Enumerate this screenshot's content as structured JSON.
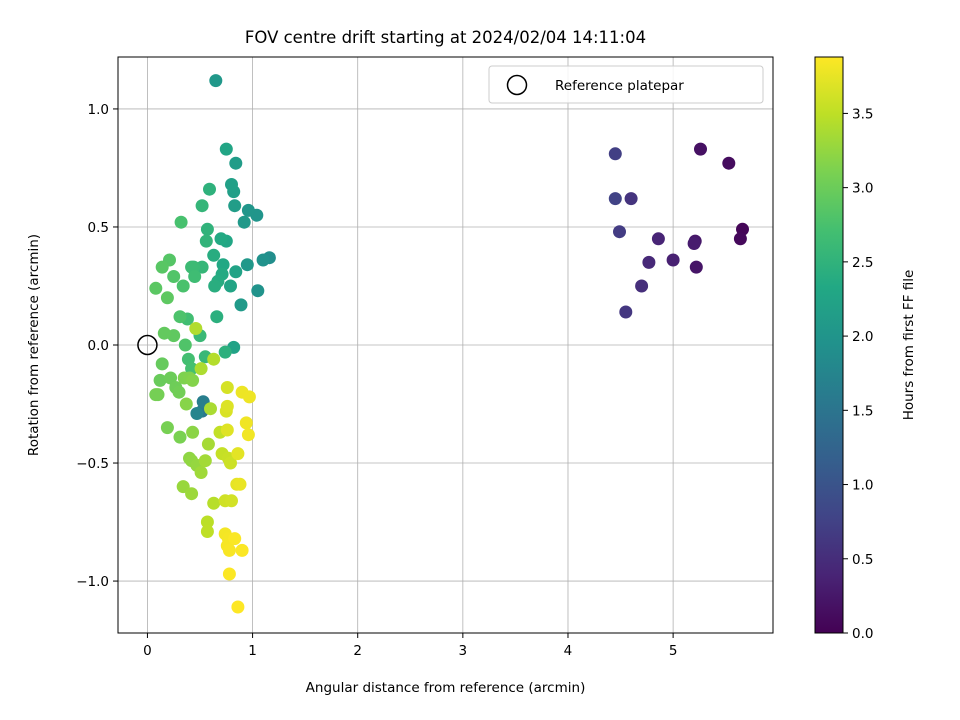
{
  "chart_data": {
    "type": "scatter",
    "title": "FOV centre drift starting at 2024/02/04 14:11:04",
    "xlabel": "Angular distance from reference (arcmin)",
    "ylabel": "Rotation from reference (arcmin)",
    "xlim": [
      -0.28,
      5.95
    ],
    "ylim": [
      -1.22,
      1.22
    ],
    "x_ticks": [
      0,
      1,
      2,
      3,
      4,
      5
    ],
    "x_tick_labels": [
      "0",
      "1",
      "2",
      "3",
      "4",
      "5"
    ],
    "y_ticks": [
      -1.0,
      -0.5,
      0.0,
      0.5,
      1.0
    ],
    "y_tick_labels": [
      "−1.0",
      "−0.5",
      "0.0",
      "0.5",
      "1.0"
    ],
    "grid": true,
    "legend": {
      "position": "top-right",
      "entries": [
        {
          "label": "Reference platepar",
          "marker": "open-circle"
        }
      ]
    },
    "reference_point": {
      "x": 0.0,
      "y": 0.0
    },
    "colorbar": {
      "label": "Hours from first FF file",
      "colormap": "viridis",
      "range": [
        0.0,
        3.88
      ],
      "ticks": [
        0.0,
        0.5,
        1.0,
        1.5,
        2.0,
        2.5,
        3.0,
        3.5
      ],
      "tick_labels": [
        "0.0",
        "0.5",
        "1.0",
        "1.5",
        "2.0",
        "2.5",
        "3.0",
        "3.5"
      ]
    },
    "points": [
      {
        "x": 5.66,
        "y": 0.49,
        "c": 0.05
      },
      {
        "x": 5.64,
        "y": 0.45,
        "c": 0.08
      },
      {
        "x": 5.53,
        "y": 0.77,
        "c": 0.12
      },
      {
        "x": 5.26,
        "y": 0.83,
        "c": 0.18
      },
      {
        "x": 5.22,
        "y": 0.33,
        "c": 0.22
      },
      {
        "x": 5.21,
        "y": 0.44,
        "c": 0.25
      },
      {
        "x": 5.2,
        "y": 0.43,
        "c": 0.3
      },
      {
        "x": 5.0,
        "y": 0.36,
        "c": 0.35
      },
      {
        "x": 4.86,
        "y": 0.45,
        "c": 0.4
      },
      {
        "x": 4.77,
        "y": 0.35,
        "c": 0.45
      },
      {
        "x": 4.7,
        "y": 0.25,
        "c": 0.52
      },
      {
        "x": 4.6,
        "y": 0.62,
        "c": 0.58
      },
      {
        "x": 4.55,
        "y": 0.14,
        "c": 0.62
      },
      {
        "x": 4.49,
        "y": 0.48,
        "c": 0.68
      },
      {
        "x": 4.45,
        "y": 0.81,
        "c": 0.72
      },
      {
        "x": 4.45,
        "y": 0.62,
        "c": 0.76
      },
      {
        "x": 0.52,
        "y": -0.28,
        "c": 1.55
      },
      {
        "x": 0.53,
        "y": -0.24,
        "c": 1.65
      },
      {
        "x": 0.47,
        "y": -0.29,
        "c": 1.75
      },
      {
        "x": 1.16,
        "y": 0.37,
        "c": 1.9
      },
      {
        "x": 1.1,
        "y": 0.36,
        "c": 1.95
      },
      {
        "x": 1.05,
        "y": 0.23,
        "c": 1.98
      },
      {
        "x": 1.04,
        "y": 0.55,
        "c": 2.0
      },
      {
        "x": 0.96,
        "y": 0.57,
        "c": 2.02
      },
      {
        "x": 0.95,
        "y": 0.34,
        "c": 2.05
      },
      {
        "x": 0.92,
        "y": 0.52,
        "c": 2.08
      },
      {
        "x": 0.89,
        "y": 0.17,
        "c": 2.1
      },
      {
        "x": 0.84,
        "y": 0.77,
        "c": 2.12
      },
      {
        "x": 0.83,
        "y": 0.59,
        "c": 2.15
      },
      {
        "x": 0.82,
        "y": 0.65,
        "c": 2.18
      },
      {
        "x": 0.8,
        "y": 0.68,
        "c": 2.2
      },
      {
        "x": 0.82,
        "y": -0.01,
        "c": 2.22
      },
      {
        "x": 0.84,
        "y": 0.31,
        "c": 2.24
      },
      {
        "x": 0.79,
        "y": 0.25,
        "c": 2.26
      },
      {
        "x": 0.75,
        "y": 0.83,
        "c": 2.28
      },
      {
        "x": 0.65,
        "y": 1.12,
        "c": 2.05
      },
      {
        "x": 0.75,
        "y": 0.44,
        "c": 2.3
      },
      {
        "x": 0.72,
        "y": 0.34,
        "c": 2.32
      },
      {
        "x": 0.7,
        "y": 0.45,
        "c": 2.34
      },
      {
        "x": 0.71,
        "y": 0.3,
        "c": 2.36
      },
      {
        "x": 0.67,
        "y": 0.27,
        "c": 2.38
      },
      {
        "x": 0.63,
        "y": 0.38,
        "c": 2.4
      },
      {
        "x": 0.64,
        "y": 0.25,
        "c": 2.42
      },
      {
        "x": 0.66,
        "y": 0.12,
        "c": 2.44
      },
      {
        "x": 0.74,
        "y": -0.03,
        "c": 2.46
      },
      {
        "x": 0.59,
        "y": 0.66,
        "c": 2.48
      },
      {
        "x": 0.57,
        "y": 0.49,
        "c": 2.5
      },
      {
        "x": 0.56,
        "y": 0.44,
        "c": 2.52
      },
      {
        "x": 0.52,
        "y": 0.59,
        "c": 2.54
      },
      {
        "x": 0.52,
        "y": 0.33,
        "c": 2.56
      },
      {
        "x": 0.55,
        "y": -0.05,
        "c": 2.58
      },
      {
        "x": 0.5,
        "y": 0.04,
        "c": 2.6
      },
      {
        "x": 0.44,
        "y": 0.33,
        "c": 2.62
      },
      {
        "x": 0.42,
        "y": 0.33,
        "c": 2.64
      },
      {
        "x": 0.45,
        "y": 0.29,
        "c": 2.66
      },
      {
        "x": 0.38,
        "y": 0.11,
        "c": 2.68
      },
      {
        "x": 0.39,
        "y": -0.06,
        "c": 2.7
      },
      {
        "x": 0.42,
        "y": -0.1,
        "c": 2.72
      },
      {
        "x": 0.32,
        "y": 0.52,
        "c": 2.74
      },
      {
        "x": 0.34,
        "y": 0.25,
        "c": 2.76
      },
      {
        "x": 0.31,
        "y": 0.12,
        "c": 2.78
      },
      {
        "x": 0.36,
        "y": 0.0,
        "c": 2.8
      },
      {
        "x": 0.25,
        "y": 0.29,
        "c": 2.82
      },
      {
        "x": 0.21,
        "y": 0.36,
        "c": 2.84
      },
      {
        "x": 0.14,
        "y": 0.33,
        "c": 2.86
      },
      {
        "x": 0.08,
        "y": 0.24,
        "c": 2.88
      },
      {
        "x": 0.19,
        "y": 0.2,
        "c": 2.9
      },
      {
        "x": 0.25,
        "y": 0.04,
        "c": 2.92
      },
      {
        "x": 0.16,
        "y": 0.05,
        "c": 2.94
      },
      {
        "x": 0.14,
        "y": -0.08,
        "c": 2.96
      },
      {
        "x": 0.12,
        "y": -0.15,
        "c": 2.98
      },
      {
        "x": 0.22,
        "y": -0.14,
        "c": 3.0
      },
      {
        "x": 0.27,
        "y": -0.18,
        "c": 3.02
      },
      {
        "x": 0.3,
        "y": -0.2,
        "c": 3.04
      },
      {
        "x": 0.1,
        "y": -0.21,
        "c": 3.06
      },
      {
        "x": 0.08,
        "y": -0.21,
        "c": 3.07
      },
      {
        "x": 0.19,
        "y": -0.35,
        "c": 3.08
      },
      {
        "x": 0.31,
        "y": -0.39,
        "c": 3.1
      },
      {
        "x": 0.35,
        "y": -0.14,
        "c": 3.12
      },
      {
        "x": 0.4,
        "y": -0.14,
        "c": 3.14
      },
      {
        "x": 0.43,
        "y": -0.15,
        "c": 3.16
      },
      {
        "x": 0.37,
        "y": -0.25,
        "c": 3.18
      },
      {
        "x": 0.43,
        "y": -0.37,
        "c": 3.2
      },
      {
        "x": 0.4,
        "y": -0.48,
        "c": 3.22
      },
      {
        "x": 0.42,
        "y": -0.49,
        "c": 3.24
      },
      {
        "x": 0.47,
        "y": -0.51,
        "c": 3.26
      },
      {
        "x": 0.34,
        "y": -0.6,
        "c": 3.28
      },
      {
        "x": 0.42,
        "y": -0.63,
        "c": 3.3
      },
      {
        "x": 0.51,
        "y": -0.54,
        "c": 3.32
      },
      {
        "x": 0.55,
        "y": -0.49,
        "c": 3.34
      },
      {
        "x": 0.58,
        "y": -0.42,
        "c": 3.36
      },
      {
        "x": 0.6,
        "y": -0.27,
        "c": 3.38
      },
      {
        "x": 0.51,
        "y": -0.1,
        "c": 3.4
      },
      {
        "x": 0.46,
        "y": 0.07,
        "c": 3.42
      },
      {
        "x": 0.63,
        "y": -0.06,
        "c": 3.44
      },
      {
        "x": 0.63,
        "y": -0.67,
        "c": 3.46
      },
      {
        "x": 0.57,
        "y": -0.75,
        "c": 3.48
      },
      {
        "x": 0.57,
        "y": -0.79,
        "c": 3.5
      },
      {
        "x": 0.69,
        "y": -0.37,
        "c": 3.52
      },
      {
        "x": 0.71,
        "y": -0.46,
        "c": 3.54
      },
      {
        "x": 0.77,
        "y": -0.48,
        "c": 3.56
      },
      {
        "x": 0.79,
        "y": -0.5,
        "c": 3.58
      },
      {
        "x": 0.74,
        "y": -0.66,
        "c": 3.6
      },
      {
        "x": 0.8,
        "y": -0.66,
        "c": 3.62
      },
      {
        "x": 0.76,
        "y": -0.18,
        "c": 3.64
      },
      {
        "x": 0.75,
        "y": -0.28,
        "c": 3.66
      },
      {
        "x": 0.76,
        "y": -0.26,
        "c": 3.68
      },
      {
        "x": 0.76,
        "y": -0.36,
        "c": 3.7
      },
      {
        "x": 0.86,
        "y": -0.46,
        "c": 3.72
      },
      {
        "x": 0.85,
        "y": -0.59,
        "c": 3.74
      },
      {
        "x": 0.88,
        "y": -0.59,
        "c": 3.76
      },
      {
        "x": 0.9,
        "y": -0.2,
        "c": 3.78
      },
      {
        "x": 0.97,
        "y": -0.22,
        "c": 3.79
      },
      {
        "x": 0.94,
        "y": -0.33,
        "c": 3.8
      },
      {
        "x": 0.96,
        "y": -0.38,
        "c": 3.81
      },
      {
        "x": 0.74,
        "y": -0.8,
        "c": 3.82
      },
      {
        "x": 0.77,
        "y": -0.82,
        "c": 3.83
      },
      {
        "x": 0.76,
        "y": -0.85,
        "c": 3.84
      },
      {
        "x": 0.78,
        "y": -0.87,
        "c": 3.85
      },
      {
        "x": 0.83,
        "y": -0.82,
        "c": 3.86
      },
      {
        "x": 0.9,
        "y": -0.87,
        "c": 3.87
      },
      {
        "x": 0.78,
        "y": -0.97,
        "c": 3.87
      },
      {
        "x": 0.86,
        "y": -1.11,
        "c": 3.88
      }
    ]
  }
}
